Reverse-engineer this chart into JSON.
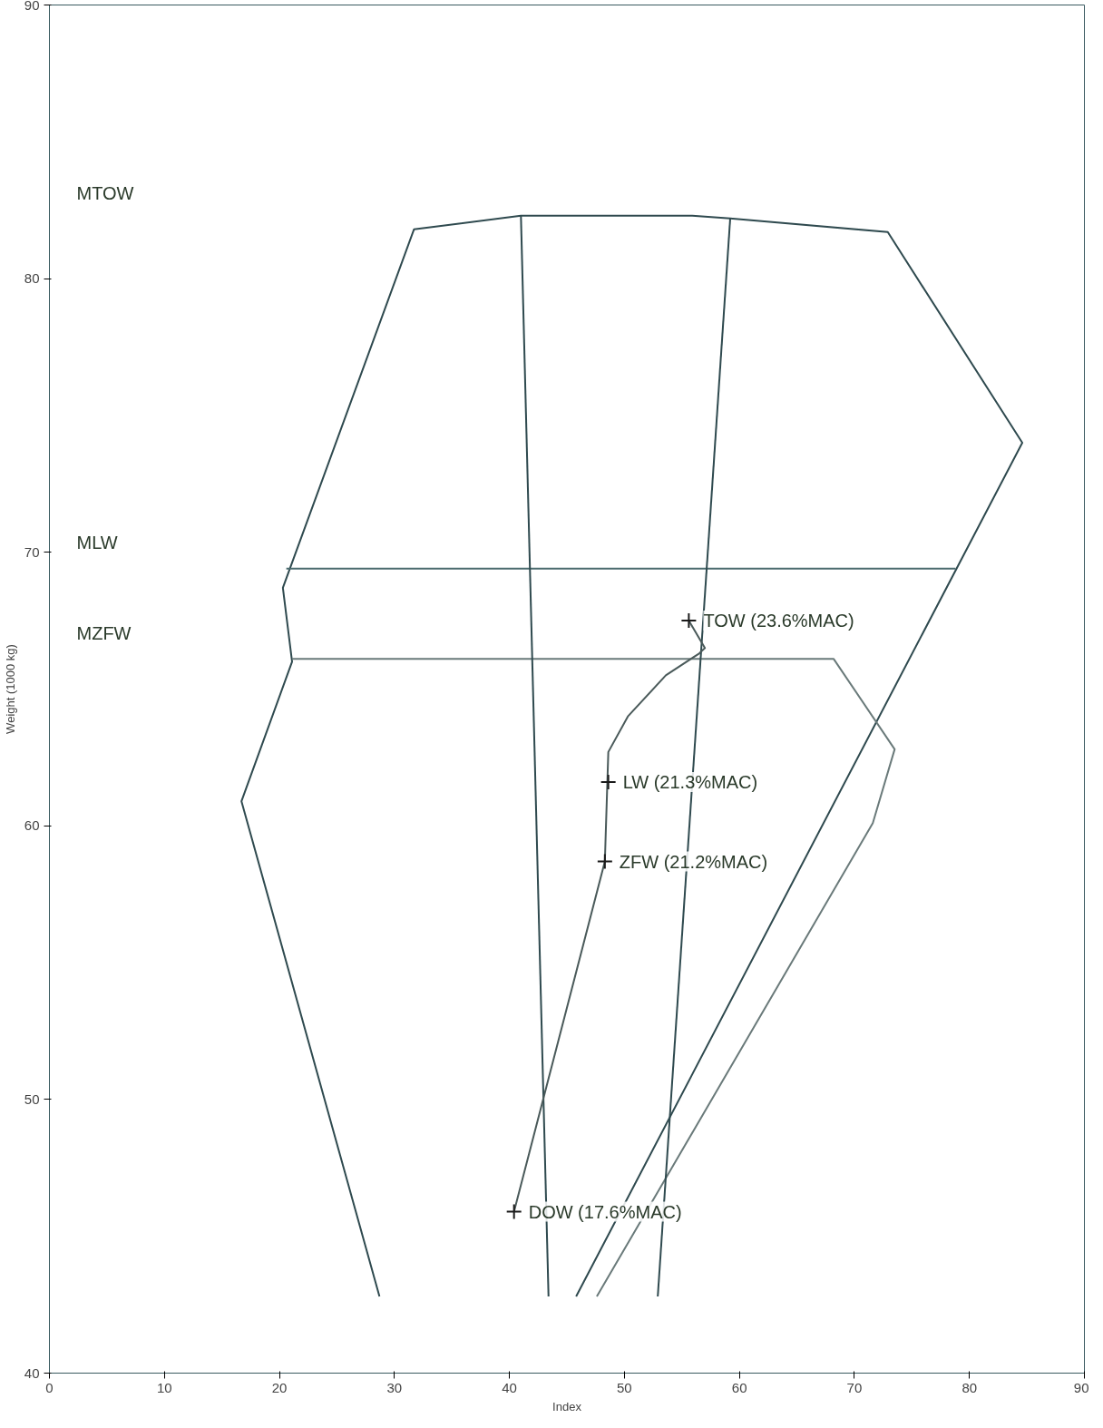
{
  "chart_data": {
    "type": "line",
    "xlabel": "Index",
    "ylabel": "Weight (1000 kg)",
    "xlim": [
      0,
      90
    ],
    "ylim": [
      40,
      90
    ],
    "xticks": [
      0,
      10,
      20,
      30,
      40,
      50,
      60,
      70,
      80,
      90
    ],
    "yticks": [
      40,
      50,
      60,
      70,
      80,
      90
    ],
    "grid": false,
    "marker": "none",
    "line_style": "solid",
    "series": [
      {
        "color": "#2f4a4f",
        "x": [
          28.7,
          16.7,
          21.1,
          20.3,
          31.7,
          41.0,
          55.9,
          59.2,
          72.9,
          84.6,
          45.8
        ],
        "values": [
          42.8,
          60.9,
          66.0,
          68.7,
          81.8,
          82.3,
          82.3,
          82.2,
          81.7,
          74.0,
          42.8
        ]
      },
      {
        "color": "#4a6a6e",
        "x": [
          20.6,
          78.8
        ],
        "values": [
          69.4,
          69.4
        ]
      },
      {
        "color": "#6a7a7a",
        "x": [
          21.1,
          68.2,
          73.5,
          71.6,
          47.6
        ],
        "values": [
          66.1,
          66.1,
          62.8,
          60.1,
          42.8
        ]
      },
      {
        "color": "#2f4a4f",
        "x": [
          41.0,
          43.4
        ],
        "values": [
          82.3,
          42.8
        ]
      },
      {
        "color": "#2f4a4f",
        "x": [
          59.2,
          52.9
        ],
        "values": [
          82.2,
          42.8
        ]
      },
      {
        "color": "#4a5a5a",
        "x": [
          40.4,
          48.3,
          48.6,
          50.3,
          53.6,
          56.5,
          57.0,
          55.6
        ],
        "values": [
          45.9,
          58.7,
          62.7,
          64.0,
          65.5,
          66.3,
          66.5,
          67.5
        ]
      },
      {
        "type": "scatter",
        "marker": "cross",
        "color": "#1a1a1a",
        "x": [
          40.4,
          48.3,
          48.6,
          55.6
        ],
        "values": [
          45.9,
          58.7,
          61.6,
          67.5
        ]
      }
    ],
    "annotations": [
      "MTOW",
      "MLW",
      "MZFW",
      {
        "text": "TOW (23.6%MAC)",
        "x": 55.6,
        "y": 67.5
      },
      {
        "text": "LW (21.3%MAC)",
        "x": 48.6,
        "y": 61.6
      },
      {
        "text": "ZFW (21.2%MAC)",
        "x": 48.3,
        "y": 58.7
      },
      {
        "text": "DOW (17.6%MAC)",
        "x": 40.4,
        "y": 45.9
      }
    ]
  }
}
